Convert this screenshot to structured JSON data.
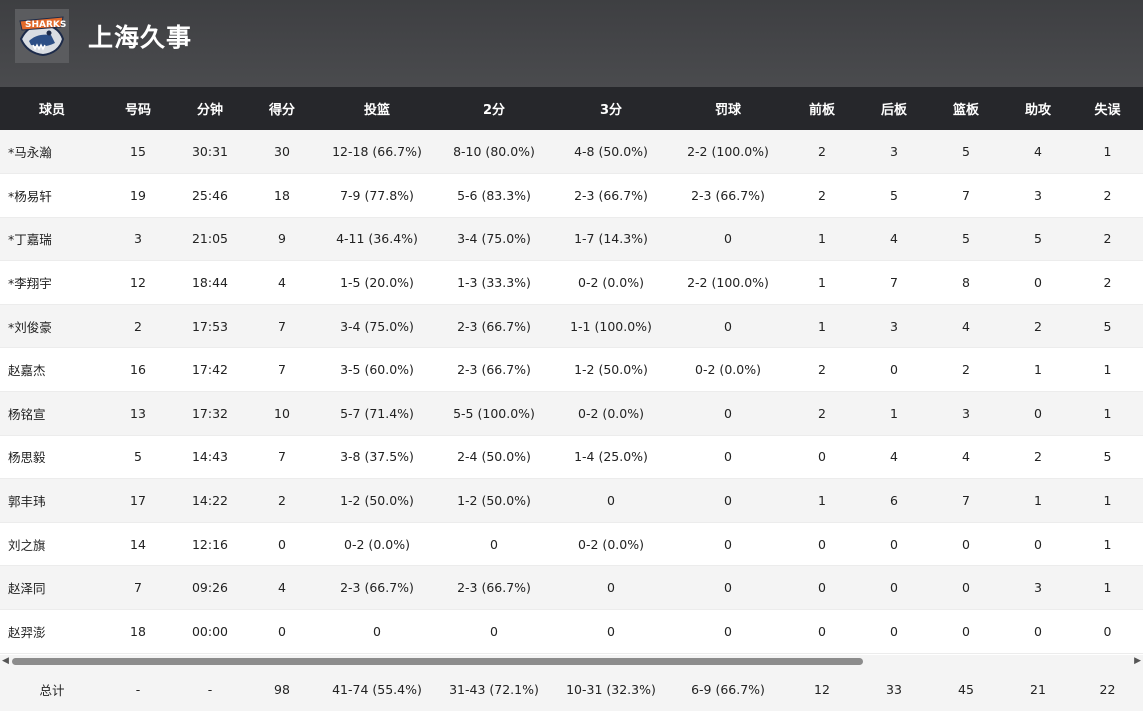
{
  "team": {
    "name": "上海久事",
    "logo_icon": "sharks-logo-icon"
  },
  "columns": [
    "球员",
    "号码",
    "分钟",
    "得分",
    "投篮",
    "2分",
    "3分",
    "罚球",
    "前板",
    "后板",
    "篮板",
    "助攻",
    "失误"
  ],
  "rows": [
    [
      "*马永瀚",
      "15",
      "30:31",
      "30",
      "12-18 (66.7%)",
      "8-10 (80.0%)",
      "4-8 (50.0%)",
      "2-2 (100.0%)",
      "2",
      "3",
      "5",
      "4",
      "1"
    ],
    [
      "*杨易轩",
      "19",
      "25:46",
      "18",
      "7-9 (77.8%)",
      "5-6 (83.3%)",
      "2-3 (66.7%)",
      "2-3 (66.7%)",
      "2",
      "5",
      "7",
      "3",
      "2"
    ],
    [
      "*丁嘉瑞",
      "3",
      "21:05",
      "9",
      "4-11 (36.4%)",
      "3-4 (75.0%)",
      "1-7 (14.3%)",
      "0",
      "1",
      "4",
      "5",
      "5",
      "2"
    ],
    [
      "*李翔宇",
      "12",
      "18:44",
      "4",
      "1-5 (20.0%)",
      "1-3 (33.3%)",
      "0-2 (0.0%)",
      "2-2 (100.0%)",
      "1",
      "7",
      "8",
      "0",
      "2"
    ],
    [
      "*刘俊豪",
      "2",
      "17:53",
      "7",
      "3-4 (75.0%)",
      "2-3 (66.7%)",
      "1-1 (100.0%)",
      "0",
      "1",
      "3",
      "4",
      "2",
      "5"
    ],
    [
      "赵嘉杰",
      "16",
      "17:42",
      "7",
      "3-5 (60.0%)",
      "2-3 (66.7%)",
      "1-2 (50.0%)",
      "0-2 (0.0%)",
      "2",
      "0",
      "2",
      "1",
      "1"
    ],
    [
      "杨铭宣",
      "13",
      "17:32",
      "10",
      "5-7 (71.4%)",
      "5-5 (100.0%)",
      "0-2 (0.0%)",
      "0",
      "2",
      "1",
      "3",
      "0",
      "1"
    ],
    [
      "杨思毅",
      "5",
      "14:43",
      "7",
      "3-8 (37.5%)",
      "2-4 (50.0%)",
      "1-4 (25.0%)",
      "0",
      "0",
      "4",
      "4",
      "2",
      "5"
    ],
    [
      "郭丰玮",
      "17",
      "14:22",
      "2",
      "1-2 (50.0%)",
      "1-2 (50.0%)",
      "0",
      "0",
      "1",
      "6",
      "7",
      "1",
      "1"
    ],
    [
      "刘之旗",
      "14",
      "12:16",
      "0",
      "0-2 (0.0%)",
      "0",
      "0-2 (0.0%)",
      "0",
      "0",
      "0",
      "0",
      "0",
      "1"
    ],
    [
      "赵泽同",
      "7",
      "09:26",
      "4",
      "2-3 (66.7%)",
      "2-3 (66.7%)",
      "0",
      "0",
      "0",
      "0",
      "0",
      "3",
      "1"
    ],
    [
      "赵羿澎",
      "18",
      "00:00",
      "0",
      "0",
      "0",
      "0",
      "0",
      "0",
      "0",
      "0",
      "0",
      "0"
    ]
  ],
  "totals": [
    "总计",
    "-",
    "-",
    "98",
    "41-74 (55.4%)",
    "31-43 (72.1%)",
    "10-31 (32.3%)",
    "6-9 (66.7%)",
    "12",
    "33",
    "45",
    "21",
    "22"
  ],
  "scrollbar": {
    "left_arrow": "◀",
    "right_arrow": "▶"
  }
}
